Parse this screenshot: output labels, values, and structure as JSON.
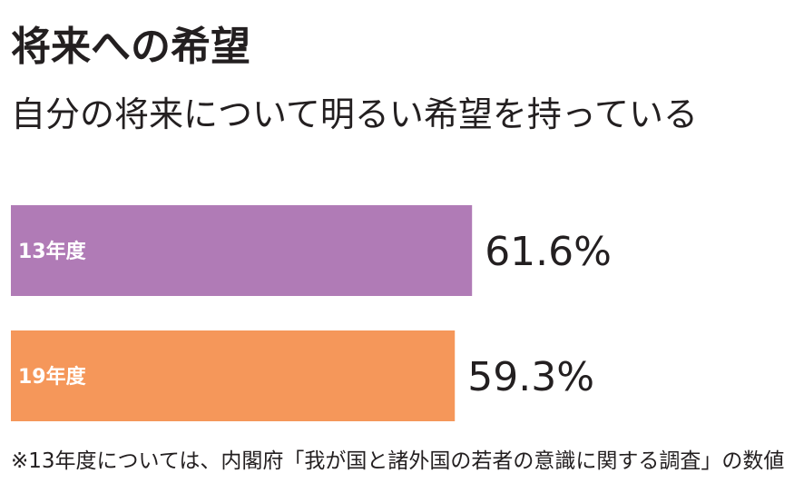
{
  "header": {
    "title": "将来への希望",
    "subtitle": "自分の将来について明るい希望を持っている"
  },
  "footnote": "※13年度については、内閣府「我が国と諸外国の若者の意識に関する調査」の数値",
  "colors": {
    "text": "#231f20",
    "bar_13": "#b07bb6",
    "bar_19": "#f5975a"
  },
  "chart_data": {
    "type": "bar",
    "orientation": "horizontal",
    "categories": [
      "13年度",
      "19年度"
    ],
    "values": [
      61.6,
      59.3
    ],
    "value_labels": [
      "61.6%",
      "59.3%"
    ],
    "unit": "%",
    "colors": [
      "#b07bb6",
      "#f5975a"
    ],
    "xlim": [
      0,
      100
    ],
    "grid": false,
    "legend": "none"
  }
}
